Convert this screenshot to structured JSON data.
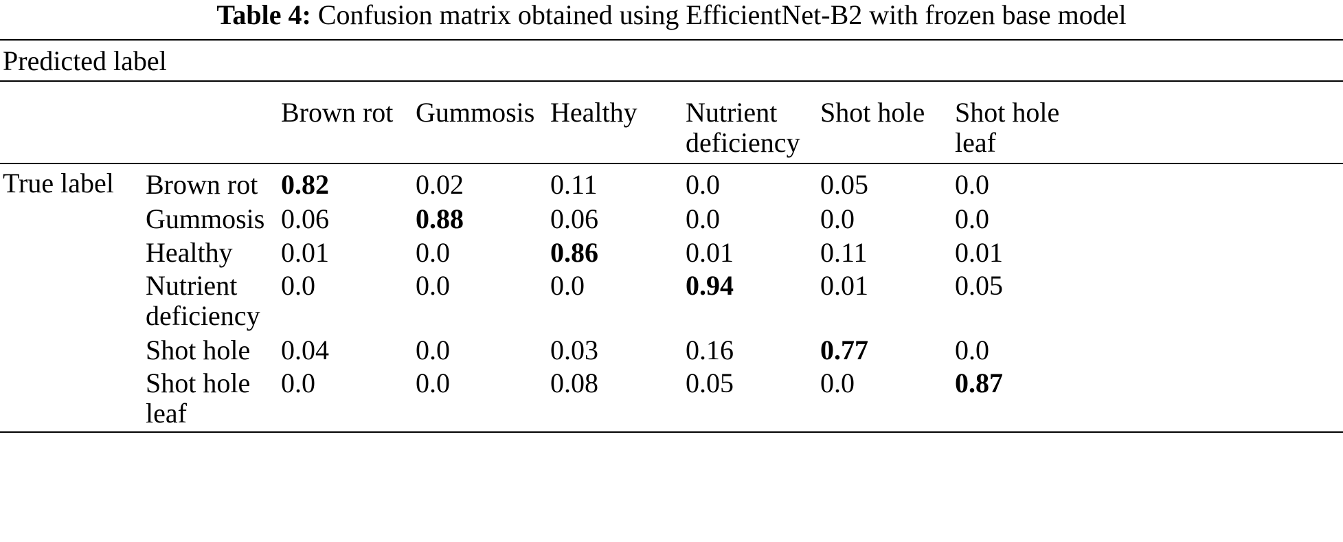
{
  "caption": {
    "label": "Table 4:",
    "text": "Confusion matrix obtained using EfficientNet-B2 with frozen base model"
  },
  "chart_data": {
    "type": "table",
    "group_header": "Predicted label",
    "row_group_label": "True label",
    "columns": [
      {
        "line1": "Brown rot",
        "line2": ""
      },
      {
        "line1": "Gummosis",
        "line2": ""
      },
      {
        "line1": "Healthy",
        "line2": ""
      },
      {
        "line1": "Nutrient",
        "line2": "deficiency"
      },
      {
        "line1": "Shot hole",
        "line2": ""
      },
      {
        "line1": "Shot hole",
        "line2": "leaf"
      }
    ],
    "rows": [
      {
        "line1": "Brown rot",
        "line2": "",
        "values": [
          "0.82",
          "0.02",
          "0.11",
          "0.0",
          "0.05",
          "0.0"
        ],
        "bold_index": 0
      },
      {
        "line1": "Gummosis",
        "line2": "",
        "values": [
          "0.06",
          "0.88",
          "0.06",
          "0.0",
          "0.0",
          "0.0"
        ],
        "bold_index": 1
      },
      {
        "line1": "Healthy",
        "line2": "",
        "values": [
          "0.01",
          "0.0",
          "0.86",
          "0.01",
          "0.11",
          "0.01"
        ],
        "bold_index": 2
      },
      {
        "line1": "Nutrient",
        "line2": "deficiency",
        "values": [
          "0.0",
          "0.0",
          "0.0",
          "0.94",
          "0.01",
          "0.05"
        ],
        "bold_index": 3
      },
      {
        "line1": "Shot hole",
        "line2": "",
        "values": [
          "0.04",
          "0.0",
          "0.03",
          "0.16",
          "0.77",
          "0.0"
        ],
        "bold_index": 4
      },
      {
        "line1": "Shot hole",
        "line2": "leaf",
        "values": [
          "0.0",
          "0.0",
          "0.08",
          "0.05",
          "0.0",
          "0.87"
        ],
        "bold_index": 5
      }
    ]
  }
}
